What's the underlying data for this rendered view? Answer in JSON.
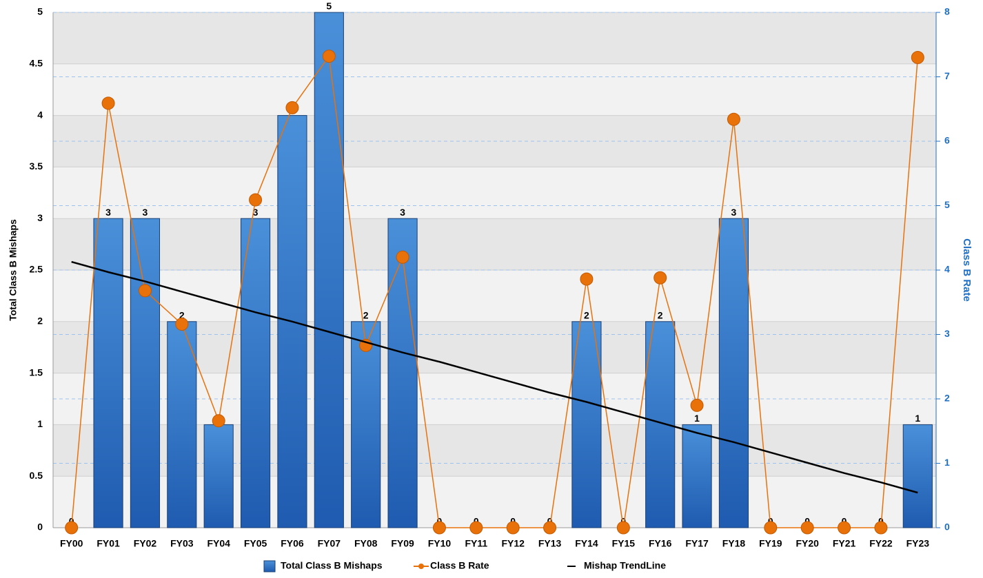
{
  "chart_data": {
    "type": "bar",
    "categories": [
      "FY00",
      "FY01",
      "FY02",
      "FY03",
      "FY04",
      "FY05",
      "FY06",
      "FY07",
      "FY08",
      "FY09",
      "FY10",
      "FY11",
      "FY12",
      "FY13",
      "FY14",
      "FY15",
      "FY16",
      "FY17",
      "FY18",
      "FY19",
      "FY20",
      "FY21",
      "FY22",
      "FY23"
    ],
    "y_label": "Total Class B Mishaps",
    "y2_label": "Class B Rate",
    "ylim": [
      0,
      5
    ],
    "yticks": [
      0,
      0.5,
      1,
      1.5,
      2,
      2.5,
      3,
      3.5,
      4,
      4.5,
      5
    ],
    "y2lim": [
      0,
      8
    ],
    "y2ticks": [
      0,
      1,
      2,
      3,
      4,
      5,
      6,
      7,
      8
    ],
    "series": [
      {
        "name": "Total Class B Mishaps",
        "type": "bar",
        "color": "#2f72c4",
        "values": [
          0,
          3,
          3,
          2,
          1,
          3,
          4,
          5,
          2,
          3,
          0,
          0,
          0,
          0,
          2,
          0,
          2,
          1,
          3,
          0,
          0,
          0,
          0,
          1
        ]
      },
      {
        "name": "Class B Rate",
        "type": "line",
        "axis": "y2",
        "color": "#e8710a",
        "values": [
          0,
          6.59,
          3.68,
          3.16,
          1.66,
          5.09,
          6.52,
          7.32,
          2.83,
          4.2,
          0,
          0,
          0,
          0,
          3.86,
          0,
          3.88,
          1.9,
          6.34,
          0,
          0,
          0,
          0,
          7.3
        ]
      },
      {
        "name": "Mishap TrendLine",
        "type": "trend",
        "color": "#000000",
        "values": [
          2.58,
          2.48,
          2.39,
          2.29,
          2.19,
          2.09,
          2.0,
          1.9,
          1.8,
          1.7,
          1.61,
          1.51,
          1.41,
          1.31,
          1.22,
          1.12,
          1.02,
          0.92,
          0.83,
          0.73,
          0.63,
          0.53,
          0.44,
          0.34
        ]
      }
    ]
  }
}
